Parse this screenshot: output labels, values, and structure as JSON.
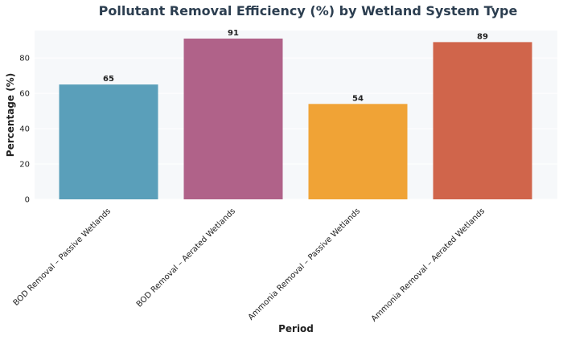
{
  "chart_data": {
    "type": "bar",
    "title": "Pollutant Removal Efficiency (%) by Wetland System Type",
    "xlabel": "Period",
    "ylabel": "Percentage (%)",
    "categories": [
      "BOD Removal – Passive Wetlands",
      "BOD Removal – Aerated Wetlands",
      "Ammonia Removal – Passive Wetlands",
      "Ammonia Removal – Aerated Wetlands"
    ],
    "values": [
      65,
      91,
      54,
      89
    ],
    "value_labels": [
      "65",
      "91",
      "54",
      "89"
    ],
    "colors": [
      "#5a9fba",
      "#b06289",
      "#f0a336",
      "#d0654b"
    ],
    "yticks": [
      0,
      20,
      40,
      60,
      80
    ],
    "ylim": [
      0,
      95.55
    ],
    "grid": true,
    "legend": "none",
    "background": "#f6f8fa"
  }
}
